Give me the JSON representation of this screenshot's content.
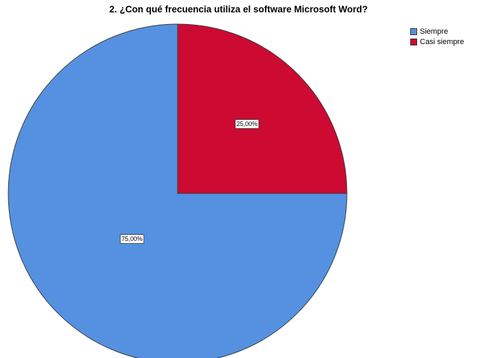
{
  "chart_data": {
    "type": "pie",
    "title": "2. ¿Con qué frecuencia utiliza el software Microsoft Word?",
    "categories": [
      "Siempre",
      "Casi siempre"
    ],
    "values": [
      75,
      25
    ],
    "labels": [
      "75,00%",
      "25,00%"
    ],
    "colors": [
      "#5591e0",
      "#cc0a32"
    ],
    "legend_position": "top-right"
  }
}
